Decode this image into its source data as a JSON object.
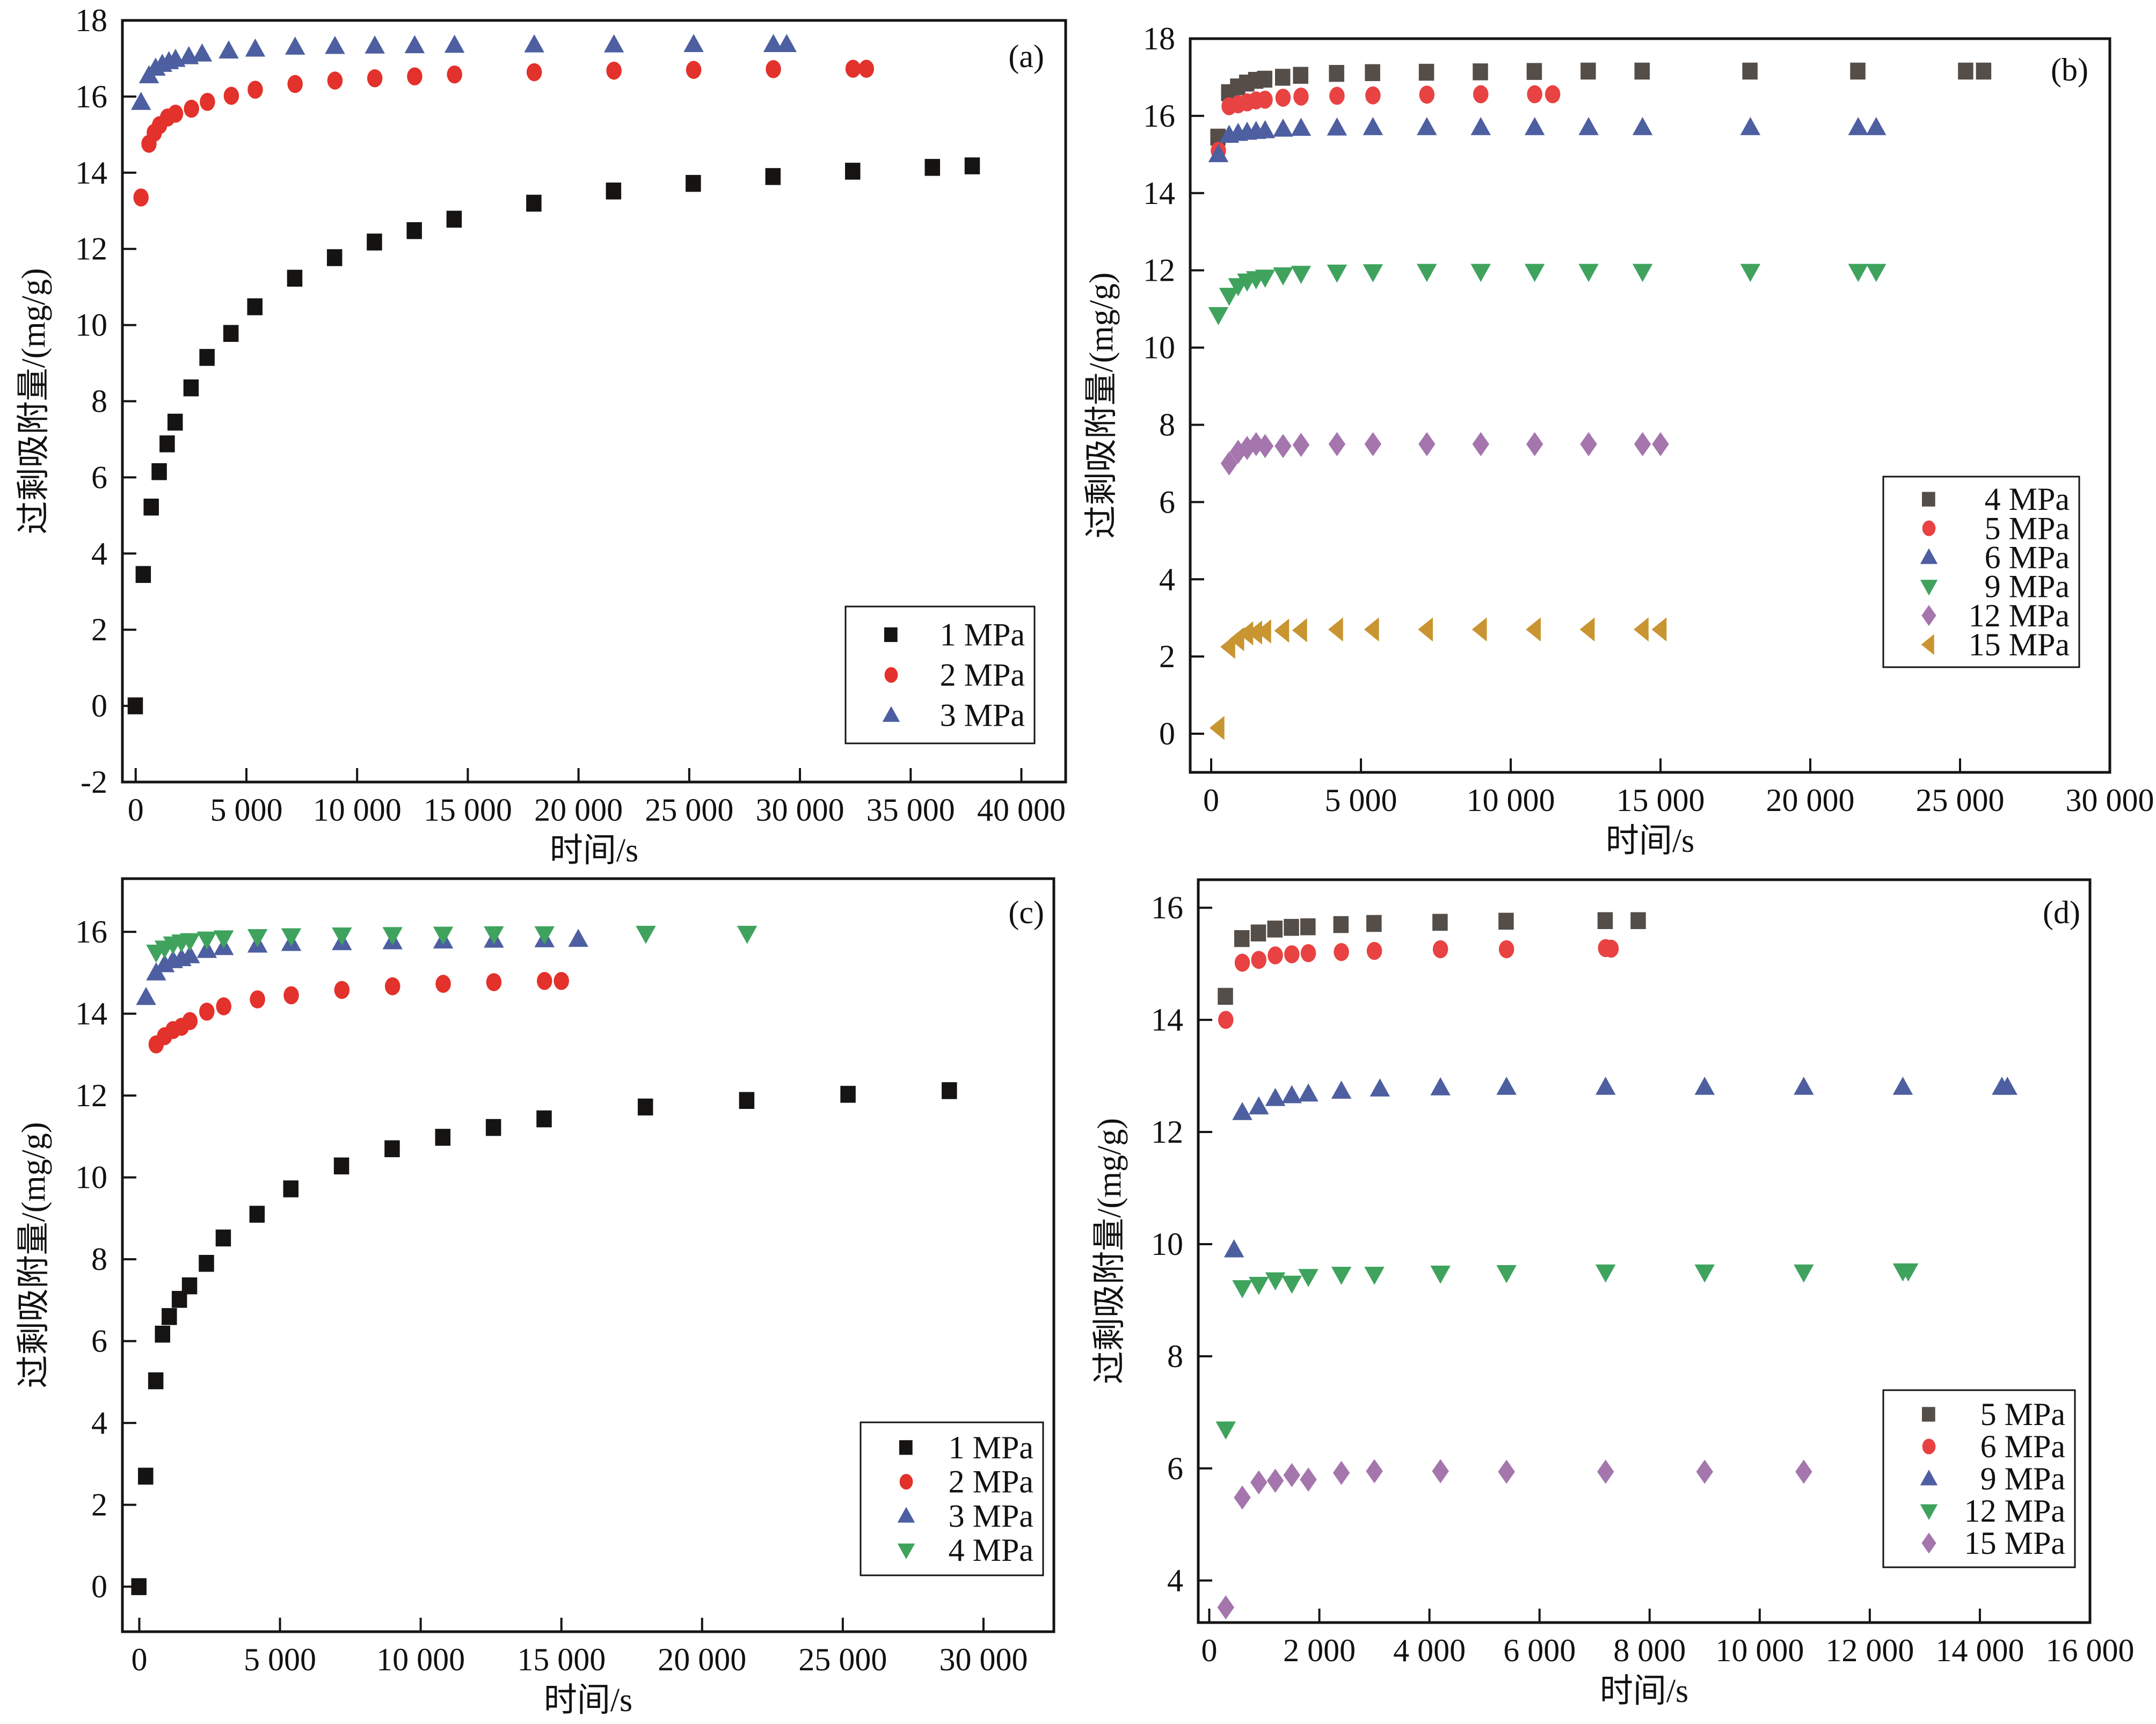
{
  "figure": {
    "description": "Excess adsorption vs time at different pressures, four panels"
  },
  "series_styles": {
    "black_square": {
      "shape": "square",
      "color": "#151412"
    },
    "gray_square": {
      "shape": "square",
      "color": "#544d48"
    },
    "red_circle": {
      "shape": "circle",
      "color": "#e3312b"
    },
    "red_circle_light": {
      "shape": "circle",
      "color": "#e84242"
    },
    "blue_triangle_up": {
      "shape": "triangle-up",
      "color": "#4d5fa0"
    },
    "green_triangle_down": {
      "shape": "triangle-down",
      "color": "#3fa35e"
    },
    "purple_diamond": {
      "shape": "diamond",
      "color": "#a476ad"
    },
    "gold_triangle_left": {
      "shape": "triangle-left",
      "color": "#c99531"
    }
  },
  "chart_data": [
    {
      "id": "a",
      "type": "scatter",
      "panel_label": "(a)",
      "title": "",
      "xlabel": "时间/s",
      "ylabel": "过剩吸附量/(mg/g)",
      "xlim": [
        -600,
        42000
      ],
      "ylim": [
        -2,
        18
      ],
      "xticks": [
        0,
        5000,
        10000,
        15000,
        20000,
        25000,
        30000,
        35000,
        40000
      ],
      "xtick_labels": [
        "0",
        "5 000",
        "10 000",
        "15 000",
        "20 000",
        "25 000",
        "30 000",
        "35 000",
        "40 000"
      ],
      "yticks": [
        -2,
        0,
        2,
        4,
        6,
        8,
        10,
        12,
        14,
        16,
        18
      ],
      "ytick_labels": [
        "-2",
        "0",
        "2",
        "4",
        "6",
        "8",
        "10",
        "12",
        "14",
        "16",
        "18"
      ],
      "grid": false,
      "legend_position": "bottom-right",
      "series": [
        {
          "name": "1 MPa",
          "style": "black_square",
          "x": [
            0,
            360,
            720,
            1080,
            1440,
            1800,
            2520,
            3240,
            4320,
            5400,
            7200,
            9000,
            10800,
            12600,
            14400,
            18000,
            21600,
            25200,
            28800,
            32400,
            36000,
            37800
          ],
          "y": [
            0,
            3.45,
            5.22,
            6.15,
            6.88,
            7.45,
            8.35,
            9.15,
            9.78,
            10.48,
            11.23,
            11.77,
            12.18,
            12.48,
            12.78,
            13.2,
            13.52,
            13.72,
            13.9,
            14.04,
            14.14,
            14.18
          ]
        },
        {
          "name": "2 MPa",
          "style": "red_circle",
          "x": [
            240,
            600,
            840,
            1080,
            1440,
            1800,
            2520,
            3240,
            4320,
            5400,
            7200,
            9000,
            10800,
            12600,
            14400,
            18000,
            21600,
            25200,
            28800,
            32400,
            33000
          ],
          "y": [
            13.35,
            14.76,
            15.05,
            15.25,
            15.45,
            15.55,
            15.68,
            15.86,
            16.02,
            16.18,
            16.33,
            16.42,
            16.48,
            16.53,
            16.58,
            16.64,
            16.68,
            16.7,
            16.72,
            16.73,
            16.73
          ]
        },
        {
          "name": "3 MPa",
          "style": "blue_triangle_up",
          "x": [
            240,
            600,
            900,
            1200,
            1500,
            1800,
            2400,
            3000,
            4200,
            5400,
            7200,
            9000,
            10800,
            12600,
            14400,
            18000,
            21600,
            25200,
            28800,
            29400
          ],
          "y": [
            15.85,
            16.55,
            16.75,
            16.85,
            16.92,
            16.98,
            17.05,
            17.12,
            17.2,
            17.25,
            17.3,
            17.32,
            17.33,
            17.34,
            17.35,
            17.36,
            17.36,
            17.37,
            17.37,
            17.37
          ]
        }
      ]
    },
    {
      "id": "b",
      "type": "scatter",
      "panel_label": "(b)",
      "title": "",
      "xlabel": "时间/s",
      "ylabel": "过剩吸附量/(mg/g)",
      "xlim": [
        -700,
        30000
      ],
      "ylim": [
        -1,
        18
      ],
      "xticks": [
        0,
        5000,
        10000,
        15000,
        20000,
        25000,
        30000
      ],
      "xtick_labels": [
        "0",
        "5 000",
        "10 000",
        "15 000",
        "20 000",
        "25 000",
        "30 000"
      ],
      "yticks": [
        0,
        2,
        4,
        6,
        8,
        10,
        12,
        14,
        16,
        18
      ],
      "ytick_labels": [
        "0",
        "2",
        "4",
        "6",
        "8",
        "10",
        "12",
        "14",
        "16",
        "18"
      ],
      "grid": false,
      "legend_position": "bottom-right",
      "series": [
        {
          "name": "4 MPa",
          "style": "gray_square",
          "x": [
            240,
            600,
            900,
            1200,
            1500,
            1800,
            2400,
            3000,
            4200,
            5400,
            7200,
            9000,
            10800,
            12600,
            14400,
            18000,
            21600,
            25200,
            25800
          ],
          "y": [
            15.45,
            16.6,
            16.75,
            16.85,
            16.92,
            16.95,
            17.0,
            17.05,
            17.1,
            17.12,
            17.13,
            17.14,
            17.15,
            17.16,
            17.16,
            17.16,
            17.16,
            17.16,
            17.16
          ]
        },
        {
          "name": "5 MPa",
          "style": "red_circle_light",
          "x": [
            240,
            600,
            900,
            1200,
            1500,
            1800,
            2400,
            3000,
            4200,
            5400,
            7200,
            9000,
            10800,
            11400
          ],
          "y": [
            15.1,
            16.25,
            16.3,
            16.35,
            16.4,
            16.42,
            16.47,
            16.5,
            16.52,
            16.53,
            16.55,
            16.56,
            16.56,
            16.56
          ]
        },
        {
          "name": "6 MPa",
          "style": "blue_triangle_up",
          "x": [
            240,
            600,
            900,
            1200,
            1500,
            1800,
            2400,
            3000,
            4200,
            5400,
            7200,
            9000,
            10800,
            12600,
            14400,
            18000,
            21600,
            22200
          ],
          "y": [
            15.0,
            15.5,
            15.55,
            15.58,
            15.6,
            15.62,
            15.66,
            15.68,
            15.69,
            15.7,
            15.7,
            15.7,
            15.7,
            15.7,
            15.7,
            15.7,
            15.7,
            15.7
          ]
        },
        {
          "name": "9 MPa",
          "style": "green_triangle_down",
          "x": [
            240,
            600,
            900,
            1200,
            1500,
            1800,
            2400,
            3000,
            4200,
            5400,
            7200,
            9000,
            10800,
            12600,
            14400,
            18000,
            21600,
            22200
          ],
          "y": [
            10.85,
            11.35,
            11.6,
            11.72,
            11.78,
            11.82,
            11.88,
            11.92,
            11.95,
            11.96,
            11.97,
            11.97,
            11.97,
            11.97,
            11.97,
            11.97,
            11.97,
            11.97
          ]
        },
        {
          "name": "12 MPa",
          "style": "purple_diamond",
          "x": [
            600,
            900,
            1200,
            1500,
            1800,
            2400,
            3000,
            4200,
            5400,
            7200,
            9000,
            10800,
            12600,
            14400,
            15000
          ],
          "y": [
            7.0,
            7.3,
            7.4,
            7.5,
            7.45,
            7.45,
            7.48,
            7.5,
            7.5,
            7.5,
            7.5,
            7.5,
            7.5,
            7.5,
            7.5
          ]
        },
        {
          "name": "15 MPa",
          "style": "gold_triangle_left",
          "x": [
            240,
            600,
            900,
            1200,
            1500,
            1800,
            2400,
            3000,
            4200,
            5400,
            7200,
            9000,
            10800,
            12600,
            14400,
            15000
          ],
          "y": [
            0.15,
            2.25,
            2.45,
            2.6,
            2.62,
            2.65,
            2.67,
            2.68,
            2.7,
            2.7,
            2.7,
            2.7,
            2.7,
            2.7,
            2.7,
            2.7
          ]
        }
      ]
    },
    {
      "id": "c",
      "type": "scatter",
      "panel_label": "(c)",
      "title": "",
      "xlabel": "时间/s",
      "ylabel": "过剩吸附量/(mg/g)",
      "xlim": [
        -600,
        32500
      ],
      "ylim": [
        -1.1,
        17.3
      ],
      "xticks": [
        0,
        5000,
        10000,
        15000,
        20000,
        25000,
        30000
      ],
      "xtick_labels": [
        "0",
        "5 000",
        "10 000",
        "15 000",
        "20 000",
        "25 000",
        "30 000"
      ],
      "yticks": [
        0,
        2,
        4,
        6,
        8,
        10,
        12,
        14,
        16
      ],
      "ytick_labels": [
        "0",
        "2",
        "4",
        "6",
        "8",
        "10",
        "12",
        "14",
        "16"
      ],
      "grid": false,
      "legend_position": "bottom-right",
      "series": [
        {
          "name": "1 MPa",
          "style": "black_square",
          "x": [
            0,
            240,
            600,
            840,
            1080,
            1440,
            1800,
            2400,
            3000,
            4200,
            5400,
            7200,
            9000,
            10800,
            12600,
            14400,
            18000,
            21600,
            25200,
            28800
          ],
          "y": [
            0,
            2.7,
            5.03,
            6.17,
            6.6,
            7.02,
            7.35,
            7.9,
            8.52,
            9.1,
            9.72,
            10.28,
            10.7,
            10.98,
            11.22,
            11.43,
            11.72,
            11.88,
            12.03,
            12.12
          ]
        },
        {
          "name": "2 MPa",
          "style": "red_circle",
          "x": [
            600,
            900,
            1200,
            1500,
            1800,
            2400,
            3000,
            4200,
            5400,
            7200,
            9000,
            10800,
            12600,
            14400,
            15000
          ],
          "y": [
            13.25,
            13.45,
            13.6,
            13.68,
            13.82,
            14.05,
            14.18,
            14.35,
            14.45,
            14.58,
            14.67,
            14.73,
            14.77,
            14.8,
            14.8
          ]
        },
        {
          "name": "3 MPa",
          "style": "blue_triangle_up",
          "x": [
            240,
            600,
            900,
            1200,
            1500,
            1800,
            2400,
            3000,
            4200,
            5400,
            7200,
            9000,
            10800,
            12600,
            14400,
            15600
          ],
          "y": [
            14.4,
            15.0,
            15.2,
            15.3,
            15.35,
            15.42,
            15.55,
            15.62,
            15.68,
            15.72,
            15.74,
            15.76,
            15.78,
            15.8,
            15.81,
            15.82
          ]
        },
        {
          "name": "4 MPa",
          "style": "green_triangle_down",
          "x": [
            600,
            900,
            1200,
            1500,
            1800,
            2400,
            3000,
            4200,
            5400,
            7200,
            9000,
            10800,
            12600,
            14400,
            18000,
            21600
          ],
          "y": [
            15.5,
            15.6,
            15.7,
            15.75,
            15.78,
            15.82,
            15.85,
            15.88,
            15.9,
            15.92,
            15.93,
            15.94,
            15.95,
            15.95,
            15.96,
            15.96
          ]
        }
      ]
    },
    {
      "id": "d",
      "type": "scatter",
      "panel_label": "(d)",
      "title": "",
      "xlabel": "时间/s",
      "ylabel": "过剩吸附量/(mg/g)",
      "xlim": [
        -200,
        16000
      ],
      "ylim": [
        3.25,
        16.5
      ],
      "xticks": [
        0,
        2000,
        4000,
        6000,
        8000,
        10000,
        12000,
        14000,
        16000
      ],
      "xtick_labels": [
        "0",
        "2 000",
        "4 000",
        "6 000",
        "8 000",
        "10 000",
        "12 000",
        "14 000",
        "16 000"
      ],
      "yticks": [
        4,
        6,
        8,
        10,
        12,
        14,
        16
      ],
      "ytick_labels": [
        "4",
        "6",
        "8",
        "10",
        "12",
        "14",
        "16"
      ],
      "grid": false,
      "legend_position": "bottom-right",
      "series": [
        {
          "name": "5 MPa",
          "style": "gray_square",
          "x": [
            300,
            600,
            900,
            1200,
            1500,
            1800,
            2400,
            3000,
            4200,
            5400,
            7200,
            7800
          ],
          "y": [
            14.42,
            15.45,
            15.55,
            15.62,
            15.65,
            15.66,
            15.7,
            15.72,
            15.74,
            15.76,
            15.77,
            15.77
          ]
        },
        {
          "name": "6 MPa",
          "style": "red_circle_light",
          "x": [
            300,
            600,
            900,
            1200,
            1500,
            1800,
            2400,
            3000,
            4200,
            5400,
            7200,
            7300
          ],
          "y": [
            14.0,
            15.02,
            15.07,
            15.15,
            15.17,
            15.19,
            15.21,
            15.23,
            15.26,
            15.26,
            15.28,
            15.27
          ]
        },
        {
          "name": "9 MPa",
          "style": "blue_triangle_up",
          "x": [
            450,
            600,
            900,
            1200,
            1500,
            1800,
            2400,
            3100,
            4200,
            5400,
            7200,
            9000,
            10800,
            12600,
            14400,
            14500
          ],
          "y": [
            9.9,
            12.35,
            12.45,
            12.6,
            12.65,
            12.68,
            12.73,
            12.77,
            12.79,
            12.8,
            12.8,
            12.8,
            12.8,
            12.8,
            12.8,
            12.8
          ]
        },
        {
          "name": "12 MPa",
          "style": "green_triangle_down",
          "x": [
            300,
            600,
            900,
            1200,
            1500,
            1800,
            2400,
            3000,
            4200,
            5400,
            7200,
            9000,
            10800,
            12600,
            12700
          ],
          "y": [
            6.7,
            9.22,
            9.28,
            9.36,
            9.3,
            9.42,
            9.46,
            9.46,
            9.48,
            9.49,
            9.5,
            9.5,
            9.5,
            9.52,
            9.52
          ]
        },
        {
          "name": "15 MPa",
          "style": "purple_diamond",
          "x": [
            300,
            600,
            900,
            1200,
            1500,
            1800,
            2400,
            3000,
            4200,
            5400,
            7200,
            9000,
            10800
          ],
          "y": [
            3.52,
            5.48,
            5.75,
            5.78,
            5.88,
            5.8,
            5.92,
            5.95,
            5.95,
            5.94,
            5.94,
            5.94,
            5.94
          ]
        }
      ]
    }
  ]
}
